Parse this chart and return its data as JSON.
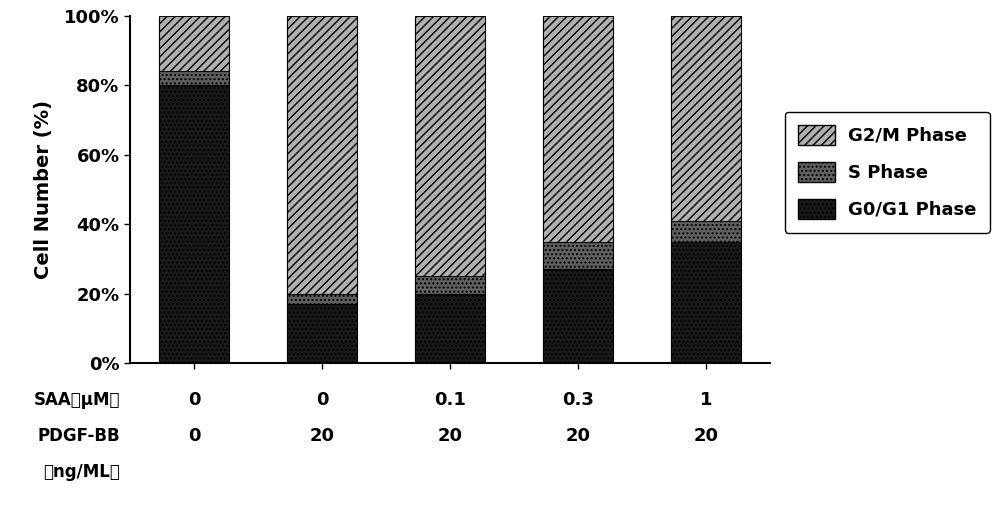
{
  "saa_labels": [
    "0",
    "0",
    "0.1",
    "0.3",
    "1"
  ],
  "pdgfbb_labels": [
    "0",
    "20",
    "20",
    "20",
    "20"
  ],
  "g0g1": [
    80,
    17,
    20,
    27,
    35
  ],
  "s_phase": [
    4,
    3,
    5,
    8,
    6
  ],
  "g2m": [
    16,
    80,
    75,
    65,
    59
  ],
  "g0g1_color": "#1a1a1a",
  "s_phase_color": "#606060",
  "g2m_color": "#b0b0b0",
  "g0g1_hatch": "....",
  "s_phase_hatch": "....",
  "g2m_hatch": "////",
  "ylabel": "Cell Number (%)",
  "yticks": [
    0,
    20,
    40,
    60,
    80,
    100
  ],
  "ytick_labels": [
    "0%",
    "20%",
    "40%",
    "60%",
    "80%",
    "100%"
  ],
  "legend_labels": [
    "G2/M Phase",
    "S Phase",
    "G0/G1 Phase"
  ],
  "bar_width": 0.55,
  "background_color": "#ffffff",
  "saa_row_label": "SAA（μM）",
  "pdgf_row_label": "PDGF-BB",
  "ngml_row_label": "（ng/ML）"
}
